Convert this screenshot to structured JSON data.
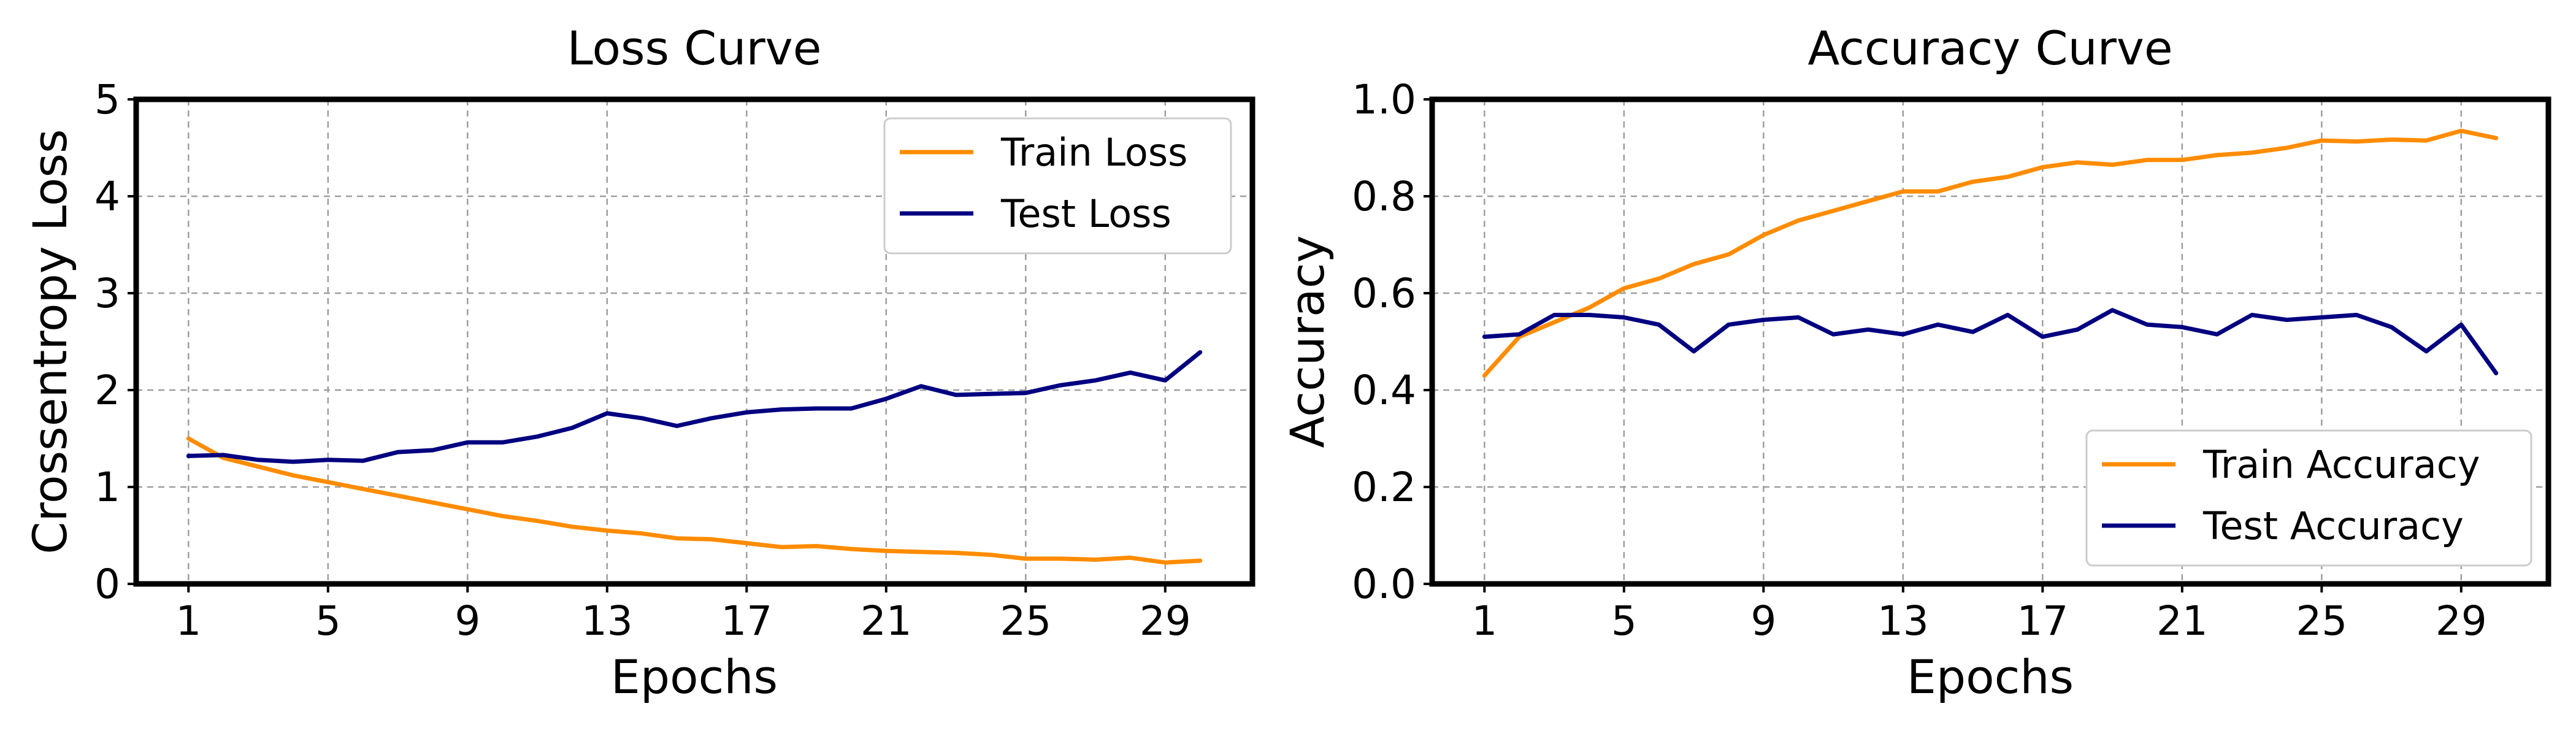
{
  "colors": {
    "train": "#ff8c00",
    "test": "#000080"
  },
  "chart_data": [
    {
      "type": "line",
      "title": "Loss Curve",
      "xlabel": "Epochs",
      "ylabel": "Crossentropy Loss",
      "xlim": [
        -0.5,
        31.5
      ],
      "ylim": [
        0,
        5
      ],
      "xticks": [
        1,
        5,
        9,
        13,
        17,
        21,
        25,
        29
      ],
      "yticks": [
        0,
        1,
        2,
        3,
        4,
        5
      ],
      "ytick_labels": [
        "0",
        "1",
        "2",
        "3",
        "4",
        "5"
      ],
      "grid": true,
      "legend_position": "top-right",
      "x": [
        1,
        2,
        3,
        4,
        5,
        6,
        7,
        8,
        9,
        10,
        11,
        12,
        13,
        14,
        15,
        16,
        17,
        18,
        19,
        20,
        21,
        22,
        23,
        24,
        25,
        26,
        27,
        28,
        29,
        30
      ],
      "series": [
        {
          "name": "Train Loss",
          "color": "#ff8c00",
          "values": [
            1.5,
            1.3,
            1.21,
            1.12,
            1.05,
            0.98,
            0.91,
            0.84,
            0.77,
            0.7,
            0.65,
            0.59,
            0.55,
            0.52,
            0.47,
            0.46,
            0.42,
            0.38,
            0.39,
            0.36,
            0.34,
            0.33,
            0.32,
            0.3,
            0.26,
            0.26,
            0.25,
            0.27,
            0.22,
            0.24
          ]
        },
        {
          "name": "Test Loss",
          "color": "#000080",
          "values": [
            1.32,
            1.33,
            1.28,
            1.26,
            1.28,
            1.27,
            1.36,
            1.38,
            1.46,
            1.46,
            1.52,
            1.61,
            1.76,
            1.71,
            1.63,
            1.71,
            1.77,
            1.8,
            1.81,
            1.81,
            1.91,
            2.04,
            1.95,
            1.96,
            1.97,
            2.05,
            2.1,
            2.18,
            2.1,
            2.39
          ]
        }
      ]
    },
    {
      "type": "line",
      "title": "Accuracy Curve",
      "xlabel": "Epochs",
      "ylabel": "Accuracy",
      "xlim": [
        -0.5,
        31.5
      ],
      "ylim": [
        0,
        1
      ],
      "xticks": [
        1,
        5,
        9,
        13,
        17,
        21,
        25,
        29
      ],
      "yticks": [
        0,
        0.2,
        0.4,
        0.6,
        0.8,
        1.0
      ],
      "ytick_labels": [
        "0.0",
        "0.2",
        "0.4",
        "0.6",
        "0.8",
        "1.0"
      ],
      "grid": true,
      "legend_position": "bottom-right",
      "x": [
        1,
        2,
        3,
        4,
        5,
        6,
        7,
        8,
        9,
        10,
        11,
        12,
        13,
        14,
        15,
        16,
        17,
        18,
        19,
        20,
        21,
        22,
        23,
        24,
        25,
        26,
        27,
        28,
        29,
        30
      ],
      "series": [
        {
          "name": "Train Accuracy",
          "color": "#ff8c00",
          "values": [
            0.43,
            0.51,
            0.54,
            0.57,
            0.61,
            0.63,
            0.66,
            0.68,
            0.72,
            0.75,
            0.77,
            0.79,
            0.81,
            0.81,
            0.83,
            0.84,
            0.86,
            0.87,
            0.865,
            0.875,
            0.875,
            0.885,
            0.89,
            0.9,
            0.915,
            0.913,
            0.917,
            0.915,
            0.935,
            0.92
          ]
        },
        {
          "name": "Test Accuracy",
          "color": "#000080",
          "values": [
            0.51,
            0.515,
            0.555,
            0.555,
            0.55,
            0.535,
            0.48,
            0.535,
            0.545,
            0.55,
            0.515,
            0.525,
            0.515,
            0.535,
            0.52,
            0.555,
            0.51,
            0.525,
            0.565,
            0.535,
            0.53,
            0.515,
            0.555,
            0.545,
            0.55,
            0.555,
            0.53,
            0.48,
            0.535,
            0.435
          ]
        }
      ]
    }
  ]
}
